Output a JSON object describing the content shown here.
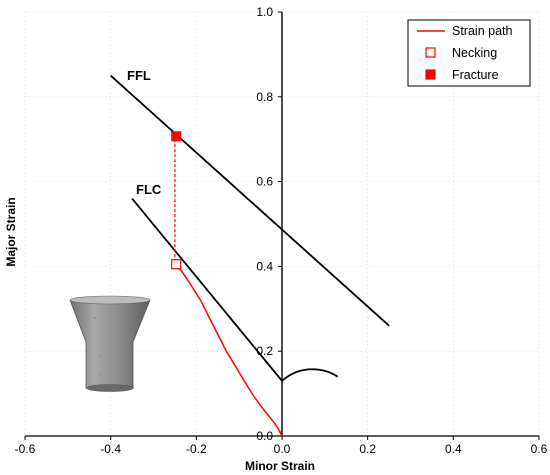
{
  "chart_data": {
    "type": "line",
    "title": "",
    "xlabel": "Minor Strain",
    "ylabel": "Major Strain",
    "xlim": [
      -0.6,
      0.6
    ],
    "ylim": [
      0.0,
      1.0
    ],
    "x_ticks": [
      "-0.6",
      "-0.4",
      "-0.2",
      "0.0",
      "0.2",
      "0.4",
      "0.6"
    ],
    "y_ticks": [
      "0.0",
      "0.2",
      "0.4",
      "0.6",
      "0.8",
      "1.0"
    ],
    "grid": true,
    "legend": {
      "placement": "top-right",
      "entries": [
        "Strain path",
        "Necking",
        "Fracture"
      ]
    },
    "colors": {
      "strain_path": "#ff0000",
      "necking": "#ff0000",
      "fracture": "#ff0000",
      "limit_curves": "#000000"
    },
    "series": [
      {
        "name": "Strain path",
        "x": [
          0.0,
          -0.01,
          -0.025,
          -0.045,
          -0.07,
          -0.1,
          -0.13,
          -0.16,
          -0.19,
          -0.215,
          -0.235,
          -0.245,
          -0.25,
          -0.25,
          -0.25
        ],
        "y": [
          0.0,
          0.02,
          0.04,
          0.065,
          0.1,
          0.15,
          0.2,
          0.26,
          0.32,
          0.36,
          0.39,
          0.4,
          0.41,
          0.55,
          0.71
        ]
      },
      {
        "name": "Necking",
        "x": [
          -0.247
        ],
        "y": [
          0.405
        ]
      },
      {
        "name": "Fracture",
        "x": [
          -0.247
        ],
        "y": [
          0.707
        ]
      }
    ],
    "annotations": [
      {
        "text": "FFL",
        "x": [
          -0.4,
          0.25
        ],
        "y": [
          0.85,
          0.26
        ]
      },
      {
        "text": "FLC",
        "x": [
          -0.35,
          0.0,
          0.04,
          0.08,
          0.13
        ],
        "y": [
          0.56,
          0.13,
          0.15,
          0.155,
          0.14
        ]
      }
    ]
  }
}
